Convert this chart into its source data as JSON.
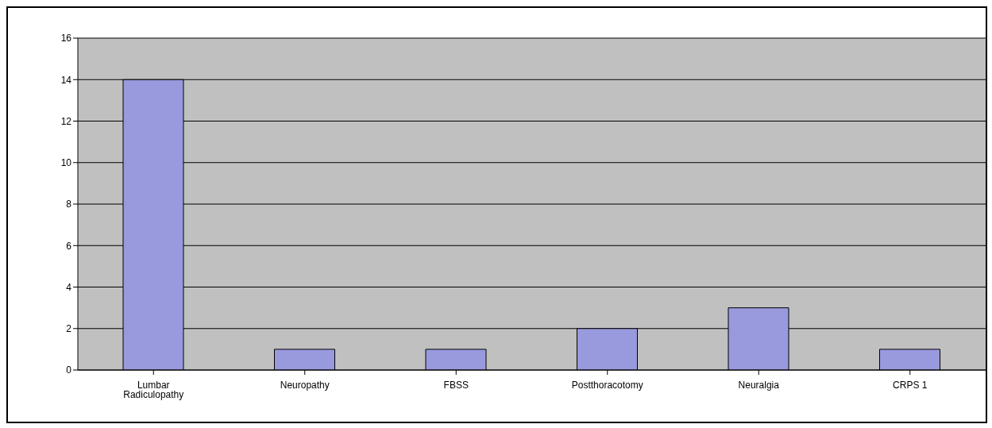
{
  "chart_data": {
    "type": "bar",
    "categories": [
      "Lumbar Radiculopathy",
      "Neuropathy",
      "FBSS",
      "Postthoracotomy",
      "Neuralgia",
      "CRPS 1"
    ],
    "values": [
      14,
      1,
      1,
      2,
      3,
      1
    ],
    "color": "#9999dd",
    "ylim": [
      0,
      16
    ],
    "yticks": [
      0,
      2,
      4,
      6,
      8,
      10,
      12,
      14,
      16
    ],
    "grid": "y"
  }
}
